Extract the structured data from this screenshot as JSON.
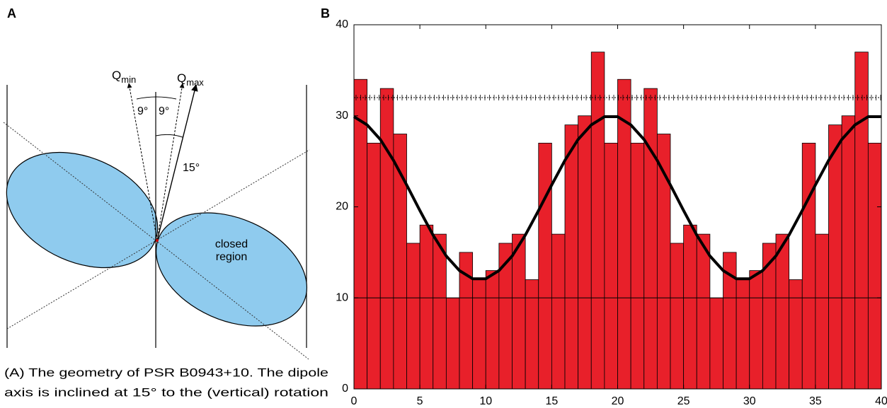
{
  "panel_a": {
    "panel_label": "A",
    "q_min": {
      "base": "Q",
      "sub": "min"
    },
    "q_max": {
      "base": "Q",
      "sub": "max"
    },
    "angle_left": "9°",
    "angle_right": "9°",
    "angle_tilt": "15°",
    "region_label": [
      "closed",
      "region"
    ],
    "caption": [
      "(A) The geometry of PSR B0943+10. The dipole",
      "axis is inclined at 15° to the (vertical) rotation"
    ]
  },
  "chart_data": {
    "type": "histogram",
    "panel_label": "B",
    "bins": [
      0,
      1,
      2,
      3,
      4,
      5,
      6,
      7,
      8,
      9,
      10,
      11,
      12,
      13,
      14,
      15,
      16,
      17,
      18,
      19,
      20,
      21,
      22,
      23,
      24,
      25,
      26,
      27,
      28,
      29,
      30,
      31,
      32,
      33,
      34,
      35,
      36,
      37,
      38,
      39,
      40
    ],
    "values": [
      34,
      27,
      33,
      28,
      16,
      18,
      17,
      10,
      15,
      12,
      13,
      16,
      17,
      12,
      27,
      17,
      29,
      30,
      37,
      27,
      34,
      27,
      33,
      28,
      16,
      18,
      17,
      10,
      15,
      12,
      13,
      16,
      17,
      12,
      27,
      17,
      29,
      30,
      37,
      27
    ],
    "color": "#e8202a",
    "curve": {
      "color": "#000000",
      "x": [
        0,
        1,
        2,
        3,
        4,
        5,
        6,
        7,
        8,
        9,
        10,
        11,
        12,
        13,
        14,
        15,
        16,
        17,
        18,
        19,
        20,
        21,
        22,
        23,
        24,
        25,
        26,
        27,
        28,
        29,
        30,
        31,
        32,
        33,
        34,
        35,
        36,
        37,
        38,
        39,
        40
      ],
      "values": [
        29.9,
        29.0,
        27.4,
        25.1,
        22.4,
        19.6,
        16.9,
        14.6,
        13.0,
        12.1,
        12.1,
        13.0,
        14.6,
        16.9,
        19.6,
        22.4,
        25.1,
        27.4,
        29.0,
        29.9,
        29.9,
        29.0,
        27.4,
        25.1,
        22.4,
        19.6,
        16.9,
        14.6,
        13.0,
        12.1,
        12.1,
        13.0,
        14.6,
        16.9,
        19.6,
        22.4,
        25.1,
        27.4,
        29.0,
        29.9,
        29.9
      ]
    },
    "reference_lines": [
      32,
      10
    ],
    "xlim": [
      0,
      40
    ],
    "xticks": [
      0,
      5,
      10,
      15,
      20,
      25,
      30,
      35,
      40
    ],
    "ylim": [
      0,
      40
    ],
    "yticks": [
      0,
      10,
      20,
      30,
      40
    ]
  }
}
